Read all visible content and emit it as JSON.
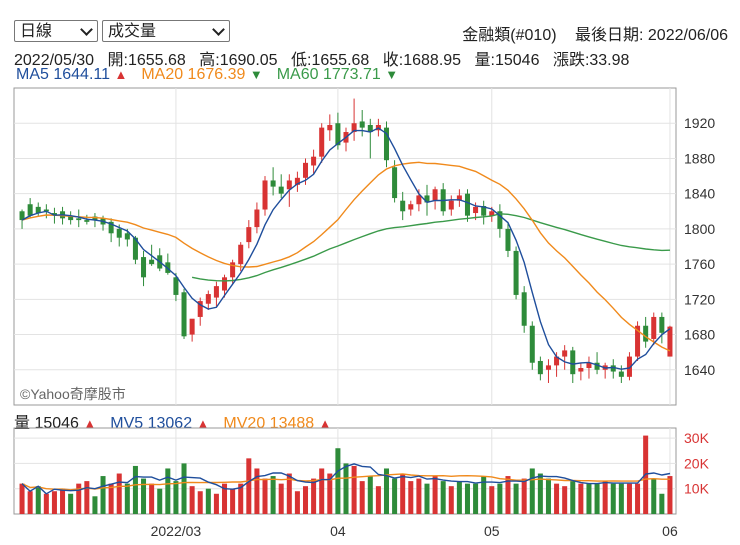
{
  "controls": {
    "period": "日線",
    "indicator": "成交量"
  },
  "header": {
    "name": "金融類(#010)",
    "last_date_label": "最後日期: 2022/06/06"
  },
  "ohlc": {
    "date": "2022/05/30",
    "open": "開:1655.68",
    "high": "高:1690.05",
    "low": "低:1655.68",
    "close": "收:1688.95",
    "volume": "量:15046",
    "change": "漲跌:33.98"
  },
  "ma_legend": [
    {
      "label": "MA5",
      "value": "1644.11",
      "color": "#1f4e9c",
      "dir": "up"
    },
    {
      "label": "MA20",
      "value": "1676.39",
      "color": "#f08a1c",
      "dir": "down"
    },
    {
      "label": "MA60",
      "value": "1773.71",
      "color": "#3a9a4a",
      "dir": "down"
    }
  ],
  "vol_legend": [
    {
      "label": "量",
      "value": "15046",
      "color": "#222222",
      "dir": "up"
    },
    {
      "label": "MV5",
      "value": "13062",
      "color": "#1f4e9c",
      "dir": "up"
    },
    {
      "label": "MV20",
      "value": "13488",
      "color": "#f08a1c",
      "dir": "up"
    }
  ],
  "watermark": "©Yahoo奇摩股市",
  "chart_data": {
    "type": "candlestick",
    "y_ticks": [
      1640,
      1680,
      1720,
      1760,
      1800,
      1840,
      1880,
      1920
    ],
    "y_range": [
      1600,
      1960
    ],
    "vol_ticks": [
      "10K",
      "20K",
      "30K"
    ],
    "vol_tick_values": [
      10000,
      20000,
      30000
    ],
    "vol_range": [
      0,
      34000
    ],
    "x_labels": [
      {
        "label": "2022/03",
        "index": 19
      },
      {
        "label": "04",
        "index": 39
      },
      {
        "label": "05",
        "index": 58
      },
      {
        "label": "06",
        "index": 80
      }
    ],
    "candles": [
      [
        1820,
        1822,
        1810,
        1800
      ],
      [
        1828,
        1835,
        1815,
        1812
      ],
      [
        1825,
        1830,
        1818,
        1815
      ],
      [
        1822,
        1828,
        1820,
        1812
      ],
      [
        1818,
        1824,
        1815,
        1806
      ],
      [
        1820,
        1825,
        1812,
        1805
      ],
      [
        1815,
        1820,
        1810,
        1805
      ],
      [
        1812,
        1822,
        1810,
        1802
      ],
      [
        1810,
        1816,
        1808,
        1805
      ],
      [
        1814,
        1818,
        1810,
        1802
      ],
      [
        1812,
        1815,
        1805,
        1798
      ],
      [
        1808,
        1812,
        1795,
        1785
      ],
      [
        1800,
        1805,
        1790,
        1780
      ],
      [
        1795,
        1800,
        1788,
        1780
      ],
      [
        1790,
        1792,
        1765,
        1760
      ],
      [
        1768,
        1775,
        1745,
        1735
      ],
      [
        1765,
        1782,
        1760,
        1758
      ],
      [
        1770,
        1778,
        1755,
        1752
      ],
      [
        1762,
        1772,
        1750,
        1748
      ],
      [
        1745,
        1750,
        1725,
        1718
      ],
      [
        1728,
        1732,
        1678,
        1675
      ],
      [
        1680,
        1695,
        1698,
        1672
      ],
      [
        1700,
        1722,
        1718,
        1690
      ],
      [
        1715,
        1730,
        1726,
        1708
      ],
      [
        1722,
        1740,
        1735,
        1712
      ],
      [
        1730,
        1748,
        1745,
        1722
      ],
      [
        1745,
        1765,
        1762,
        1738
      ],
      [
        1760,
        1785,
        1782,
        1752
      ],
      [
        1785,
        1810,
        1802,
        1778
      ],
      [
        1802,
        1830,
        1822,
        1795
      ],
      [
        1822,
        1860,
        1855,
        1815
      ],
      [
        1855,
        1870,
        1848,
        1838
      ],
      [
        1848,
        1862,
        1840,
        1835
      ],
      [
        1845,
        1862,
        1855,
        1825
      ],
      [
        1850,
        1865,
        1858,
        1842
      ],
      [
        1858,
        1880,
        1875,
        1850
      ],
      [
        1872,
        1890,
        1882,
        1862
      ],
      [
        1882,
        1920,
        1915,
        1875
      ],
      [
        1912,
        1930,
        1918,
        1900
      ],
      [
        1920,
        1932,
        1895,
        1890
      ],
      [
        1898,
        1915,
        1910,
        1888
      ],
      [
        1910,
        1948,
        1920,
        1900
      ],
      [
        1922,
        1935,
        1915,
        1905
      ],
      [
        1918,
        1925,
        1910,
        1880
      ],
      [
        1912,
        1925,
        1918,
        1905
      ],
      [
        1915,
        1922,
        1878,
        1870
      ],
      [
        1870,
        1878,
        1835,
        1830
      ],
      [
        1832,
        1842,
        1820,
        1810
      ],
      [
        1822,
        1832,
        1828,
        1815
      ],
      [
        1828,
        1845,
        1838,
        1820
      ],
      [
        1838,
        1850,
        1830,
        1815
      ],
      [
        1832,
        1848,
        1845,
        1822
      ],
      [
        1845,
        1852,
        1820,
        1815
      ],
      [
        1822,
        1838,
        1832,
        1815
      ],
      [
        1832,
        1845,
        1838,
        1825
      ],
      [
        1840,
        1845,
        1815,
        1808
      ],
      [
        1818,
        1830,
        1825,
        1810
      ],
      [
        1826,
        1832,
        1815,
        1805
      ],
      [
        1815,
        1825,
        1820,
        1808
      ],
      [
        1820,
        1828,
        1800,
        1790
      ],
      [
        1800,
        1808,
        1775,
        1768
      ],
      [
        1775,
        1780,
        1725,
        1720
      ],
      [
        1728,
        1735,
        1690,
        1682
      ],
      [
        1690,
        1695,
        1648,
        1640
      ],
      [
        1650,
        1655,
        1635,
        1628
      ],
      [
        1640,
        1652,
        1645,
        1625
      ],
      [
        1645,
        1660,
        1655,
        1632
      ],
      [
        1655,
        1668,
        1662,
        1640
      ],
      [
        1662,
        1666,
        1635,
        1625
      ],
      [
        1638,
        1648,
        1642,
        1628
      ],
      [
        1642,
        1655,
        1648,
        1630
      ],
      [
        1648,
        1660,
        1640,
        1635
      ],
      [
        1640,
        1648,
        1645,
        1630
      ],
      [
        1645,
        1652,
        1638,
        1630
      ],
      [
        1638,
        1645,
        1632,
        1625
      ],
      [
        1632,
        1660,
        1655,
        1628
      ],
      [
        1655,
        1695,
        1690,
        1650
      ],
      [
        1690,
        1700,
        1672,
        1665
      ],
      [
        1675,
        1705,
        1700,
        1668
      ],
      [
        1700,
        1705,
        1682,
        1670
      ],
      [
        1655,
        1690,
        1689,
        1655
      ]
    ],
    "volumes": [
      [
        12000,
        1
      ],
      [
        9000,
        1
      ],
      [
        11000,
        0
      ],
      [
        8000,
        1
      ],
      [
        9000,
        1
      ],
      [
        10000,
        1
      ],
      [
        8000,
        0
      ],
      [
        12000,
        1
      ],
      [
        13000,
        1
      ],
      [
        7000,
        0
      ],
      [
        15000,
        0
      ],
      [
        12000,
        1
      ],
      [
        16000,
        1
      ],
      [
        12000,
        0
      ],
      [
        19000,
        0
      ],
      [
        14000,
        0
      ],
      [
        12000,
        1
      ],
      [
        10000,
        0
      ],
      [
        18000,
        0
      ],
      [
        13000,
        0
      ],
      [
        20000,
        0
      ],
      [
        11000,
        1
      ],
      [
        9000,
        1
      ],
      [
        10000,
        0
      ],
      [
        8000,
        1
      ],
      [
        12000,
        1
      ],
      [
        10000,
        1
      ],
      [
        12000,
        1
      ],
      [
        22000,
        1
      ],
      [
        18000,
        1
      ],
      [
        14000,
        1
      ],
      [
        15000,
        0
      ],
      [
        12000,
        1
      ],
      [
        16000,
        1
      ],
      [
        9000,
        1
      ],
      [
        11000,
        1
      ],
      [
        14000,
        1
      ],
      [
        18000,
        1
      ],
      [
        16000,
        1
      ],
      [
        26000,
        0
      ],
      [
        20000,
        0
      ],
      [
        19000,
        1
      ],
      [
        13000,
        1
      ],
      [
        15000,
        0
      ],
      [
        11000,
        1
      ],
      [
        18000,
        0
      ],
      [
        14000,
        0
      ],
      [
        16000,
        1
      ],
      [
        13000,
        1
      ],
      [
        14000,
        1
      ],
      [
        12000,
        0
      ],
      [
        15000,
        1
      ],
      [
        13000,
        0
      ],
      [
        11000,
        1
      ],
      [
        13000,
        0
      ],
      [
        12000,
        0
      ],
      [
        12000,
        0
      ],
      [
        15000,
        0
      ],
      [
        11000,
        1
      ],
      [
        12000,
        0
      ],
      [
        15000,
        1
      ],
      [
        12000,
        0
      ],
      [
        14000,
        1
      ],
      [
        18000,
        0
      ],
      [
        16000,
        0
      ],
      [
        14000,
        0
      ],
      [
        12000,
        1
      ],
      [
        11000,
        1
      ],
      [
        13000,
        0
      ],
      [
        12000,
        1
      ],
      [
        12000,
        0
      ],
      [
        12000,
        0
      ],
      [
        13000,
        1
      ],
      [
        12000,
        0
      ],
      [
        12000,
        0
      ],
      [
        12000,
        1
      ],
      [
        12000,
        1
      ],
      [
        31000,
        1
      ],
      [
        14000,
        0
      ],
      [
        8000,
        0
      ],
      [
        15000,
        1
      ]
    ]
  }
}
